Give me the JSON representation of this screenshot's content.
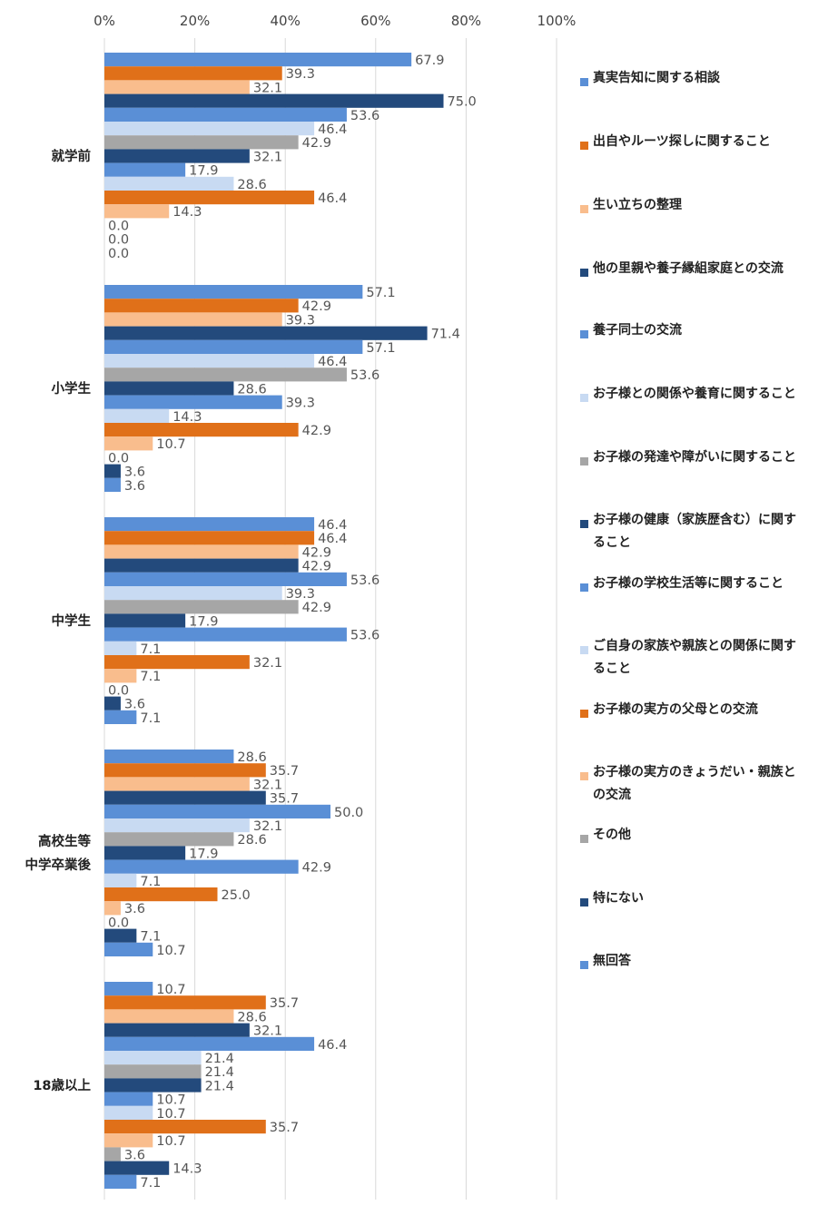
{
  "chart_data": {
    "type": "bar",
    "orientation": "horizontal",
    "xlim": [
      0,
      100
    ],
    "x_ticks": [
      "0%",
      "20%",
      "40%",
      "60%",
      "80%",
      "100%"
    ],
    "grid": true,
    "legend_position": "right",
    "categories": [
      "就学前",
      "小学生",
      "中学生",
      "高校生等\n中学卒業後",
      "18歳以上"
    ],
    "series": [
      {
        "name": "真実告知に関する相談",
        "color": "#5a8fd6",
        "values": [
          67.9,
          57.1,
          46.4,
          28.6,
          10.7
        ]
      },
      {
        "name": "出自やルーツ探しに関すること",
        "color": "#e07019",
        "values": [
          39.3,
          42.9,
          46.4,
          35.7,
          35.7
        ]
      },
      {
        "name": "生い立ちの整理",
        "color": "#f9bd8d",
        "values": [
          32.1,
          39.3,
          42.9,
          32.1,
          28.6
        ]
      },
      {
        "name": "他の里親や養子縁組家庭との交流",
        "color": "#234a7c",
        "values": [
          75.0,
          71.4,
          42.9,
          35.7,
          32.1
        ]
      },
      {
        "name": "養子同士の交流",
        "color": "#5a8fd6",
        "values": [
          53.6,
          57.1,
          53.6,
          50.0,
          46.4
        ]
      },
      {
        "name": "お子様との関係や養育に関すること",
        "color": "#c8daf2",
        "values": [
          46.4,
          46.4,
          39.3,
          32.1,
          21.4
        ]
      },
      {
        "name": "お子様の発達や障がいに関すること",
        "color": "#a6a6a6",
        "values": [
          42.9,
          53.6,
          42.9,
          28.6,
          21.4
        ]
      },
      {
        "name": "お子様の健康（家族歴含む）に関すること",
        "color": "#234a7c",
        "values": [
          32.1,
          28.6,
          17.9,
          17.9,
          21.4
        ]
      },
      {
        "name": "お子様の学校生活等に関すること",
        "color": "#5a8fd6",
        "values": [
          17.9,
          39.3,
          53.6,
          42.9,
          10.7
        ]
      },
      {
        "name": "ご自身の家族や親族との関係に関すること",
        "color": "#c8daf2",
        "values": [
          28.6,
          14.3,
          7.1,
          7.1,
          10.7
        ]
      },
      {
        "name": "お子様の実方の父母との交流",
        "color": "#e07019",
        "values": [
          46.4,
          42.9,
          32.1,
          25.0,
          35.7
        ]
      },
      {
        "name": "お子様の実方のきょうだい・親族との交流",
        "color": "#f9bd8d",
        "values": [
          14.3,
          10.7,
          7.1,
          3.6,
          10.7
        ]
      },
      {
        "name": "その他",
        "color": "#a6a6a6",
        "values": [
          0.0,
          0.0,
          0.0,
          0.0,
          3.6
        ]
      },
      {
        "name": "特にない",
        "color": "#234a7c",
        "values": [
          0.0,
          3.6,
          3.6,
          7.1,
          14.3
        ]
      },
      {
        "name": "無回答",
        "color": "#5a8fd6",
        "values": [
          0.0,
          3.6,
          7.1,
          10.7,
          7.1
        ]
      }
    ]
  }
}
